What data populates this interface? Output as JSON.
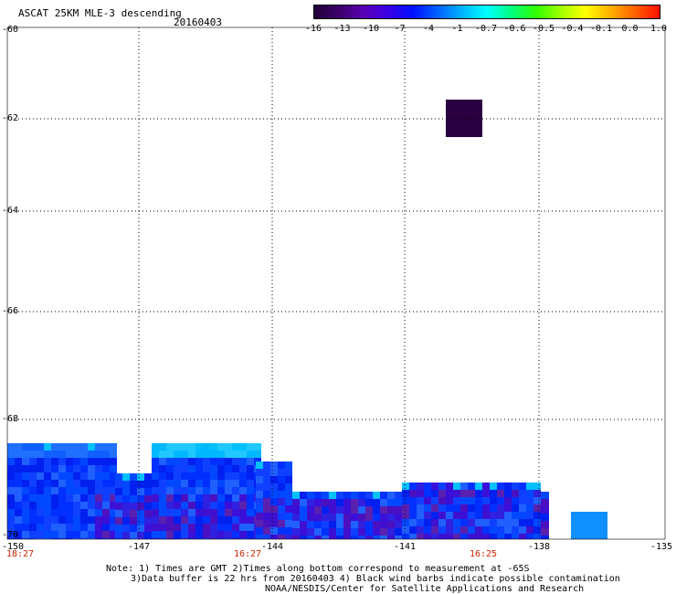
{
  "header": {
    "title": "ASCAT 25KM MLE-3 descending",
    "date": "20160403"
  },
  "colorbar": {
    "labels": [
      "-16",
      "-13",
      "-10",
      "-7",
      "-4",
      "-1",
      "-0.7",
      "-0.6",
      "-0.5",
      "-0.4",
      "-0.1",
      "0.0",
      "1.0"
    ],
    "colors": [
      "#22003a",
      "#3a0068",
      "#5a00b4",
      "#3a00e6",
      "#0010ff",
      "#0060ff",
      "#00b4ff",
      "#00ffff",
      "#00ff80",
      "#30ff00",
      "#a0ff00",
      "#ffff00",
      "#ffb000",
      "#ff6000",
      "#ff1000"
    ]
  },
  "axes": {
    "y_labels": [
      "-60",
      "-62",
      "-64",
      "-66",
      "-68",
      "-70"
    ],
    "x_labels": [
      "-150",
      "-147",
      "-144",
      "-141",
      "-138",
      "-135"
    ],
    "time_labels": [
      "18:27",
      "16:27",
      "16:25"
    ]
  },
  "notes": {
    "line1": "Note: 1) Times are GMT 2)Times along bottom correspond to measurement at -65S",
    "line2": "3)Data buffer is 22 hrs from 20160403 4) Black wind barbs indicate possible contamination",
    "line3": "NOAA/NESDIS/Center for Satellite Applications and Research"
  }
}
